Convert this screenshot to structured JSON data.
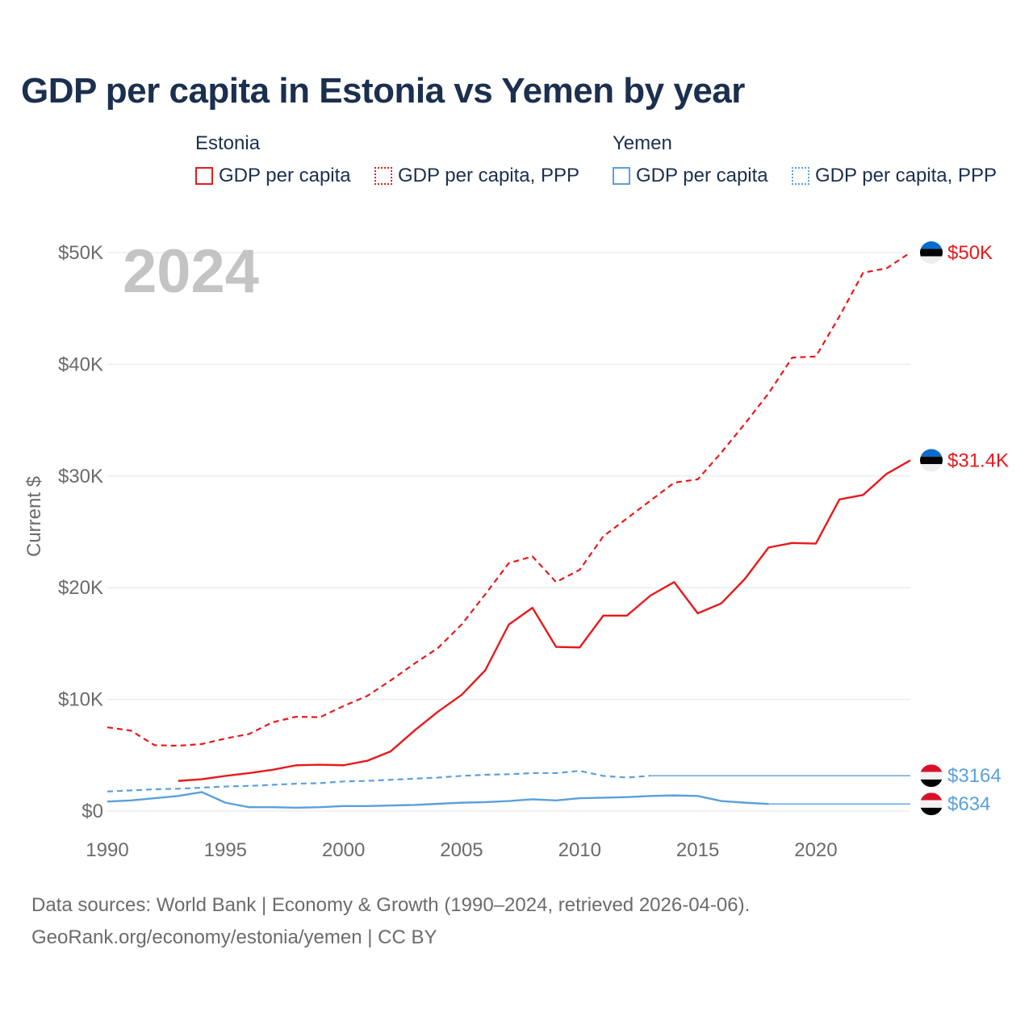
{
  "chart_data": {
    "type": "line",
    "title": "GDP per capita in Estonia vs Yemen by year",
    "ylabel": "Current $",
    "xlabel": "",
    "current_year": "2024",
    "xlim": [
      1990,
      2024
    ],
    "ylim": [
      0,
      50000
    ],
    "x_ticks": [
      1990,
      1995,
      2000,
      2005,
      2010,
      2015,
      2020
    ],
    "x_tick_labels": [
      "1990",
      "1995",
      "2000",
      "2005",
      "2010",
      "2015",
      "2020"
    ],
    "y_ticks": [
      0,
      10000,
      20000,
      30000,
      40000,
      50000
    ],
    "y_tick_labels": [
      "$0",
      "$10K",
      "$20K",
      "$30K",
      "$40K",
      "$50K"
    ],
    "legend": {
      "groups": [
        {
          "country": "Estonia",
          "entries": [
            "GDP per capita",
            "GDP per capita, PPP"
          ]
        },
        {
          "country": "Yemen",
          "entries": [
            "GDP per capita",
            "GDP per capita, PPP"
          ]
        }
      ]
    },
    "series": [
      {
        "name": "Estonia GDP per capita, PPP",
        "country": "Estonia",
        "color": "#e8191b",
        "style": "dashed",
        "end_label": "$50K",
        "points": [
          [
            1990,
            7500
          ],
          [
            1991,
            7200
          ],
          [
            1992,
            5900
          ],
          [
            1993,
            5850
          ],
          [
            1994,
            6000
          ],
          [
            1995,
            6500
          ],
          [
            1996,
            6900
          ],
          [
            1997,
            7950
          ],
          [
            1998,
            8450
          ],
          [
            1999,
            8400
          ],
          [
            2000,
            9400
          ],
          [
            2001,
            10300
          ],
          [
            2002,
            11700
          ],
          [
            2003,
            13200
          ],
          [
            2004,
            14600
          ],
          [
            2005,
            16700
          ],
          [
            2006,
            19400
          ],
          [
            2007,
            22200
          ],
          [
            2008,
            22800
          ],
          [
            2009,
            20500
          ],
          [
            2010,
            21600
          ],
          [
            2011,
            24600
          ],
          [
            2012,
            26200
          ],
          [
            2013,
            27800
          ],
          [
            2014,
            29400
          ],
          [
            2015,
            29700
          ],
          [
            2016,
            32100
          ],
          [
            2017,
            34700
          ],
          [
            2018,
            37400
          ],
          [
            2019,
            40600
          ],
          [
            2020,
            40700
          ],
          [
            2021,
            44300
          ],
          [
            2022,
            48200
          ],
          [
            2023,
            48600
          ],
          [
            2024,
            50000
          ]
        ]
      },
      {
        "name": "Estonia GDP per capita",
        "country": "Estonia",
        "color": "#e8191b",
        "style": "solid",
        "end_label": "$31.4K",
        "points": [
          [
            1993,
            2700
          ],
          [
            1994,
            2850
          ],
          [
            1995,
            3150
          ],
          [
            1996,
            3400
          ],
          [
            1997,
            3700
          ],
          [
            1998,
            4100
          ],
          [
            1999,
            4150
          ],
          [
            2000,
            4100
          ],
          [
            2001,
            4500
          ],
          [
            2002,
            5350
          ],
          [
            2003,
            7200
          ],
          [
            2004,
            8900
          ],
          [
            2005,
            10400
          ],
          [
            2006,
            12600
          ],
          [
            2007,
            16700
          ],
          [
            2008,
            18200
          ],
          [
            2009,
            14700
          ],
          [
            2010,
            14650
          ],
          [
            2011,
            17500
          ],
          [
            2012,
            17500
          ],
          [
            2013,
            19300
          ],
          [
            2014,
            20500
          ],
          [
            2015,
            17700
          ],
          [
            2016,
            18600
          ],
          [
            2017,
            20800
          ],
          [
            2018,
            23600
          ],
          [
            2019,
            24000
          ],
          [
            2020,
            23950
          ],
          [
            2021,
            27900
          ],
          [
            2022,
            28300
          ],
          [
            2023,
            30200
          ],
          [
            2024,
            31400
          ]
        ]
      },
      {
        "name": "Yemen GDP per capita, PPP",
        "country": "Yemen",
        "color": "#5aa0dc",
        "style": "dashed",
        "end_label": "$3164",
        "points": [
          [
            1990,
            1750
          ],
          [
            1991,
            1850
          ],
          [
            1992,
            1950
          ],
          [
            1993,
            2000
          ],
          [
            1994,
            2100
          ],
          [
            1995,
            2200
          ],
          [
            1996,
            2250
          ],
          [
            1997,
            2350
          ],
          [
            1998,
            2450
          ],
          [
            1999,
            2500
          ],
          [
            2000,
            2650
          ],
          [
            2001,
            2700
          ],
          [
            2002,
            2800
          ],
          [
            2003,
            2900
          ],
          [
            2004,
            3000
          ],
          [
            2005,
            3150
          ],
          [
            2006,
            3250
          ],
          [
            2007,
            3300
          ],
          [
            2008,
            3400
          ],
          [
            2009,
            3400
          ],
          [
            2010,
            3600
          ],
          [
            2011,
            3150
          ],
          [
            2012,
            3000
          ],
          [
            2013,
            3164
          ]
        ],
        "held_to": 2024
      },
      {
        "name": "Yemen GDP per capita",
        "country": "Yemen",
        "color": "#5aa0dc",
        "style": "solid",
        "end_label": "$634",
        "points": [
          [
            1990,
            850
          ],
          [
            1991,
            950
          ],
          [
            1992,
            1150
          ],
          [
            1993,
            1350
          ],
          [
            1994,
            1700
          ],
          [
            1995,
            750
          ],
          [
            1996,
            350
          ],
          [
            1997,
            350
          ],
          [
            1998,
            300
          ],
          [
            1999,
            350
          ],
          [
            2000,
            450
          ],
          [
            2001,
            450
          ],
          [
            2002,
            500
          ],
          [
            2003,
            550
          ],
          [
            2004,
            650
          ],
          [
            2005,
            750
          ],
          [
            2006,
            800
          ],
          [
            2007,
            900
          ],
          [
            2008,
            1050
          ],
          [
            2009,
            950
          ],
          [
            2010,
            1150
          ],
          [
            2011,
            1200
          ],
          [
            2012,
            1250
          ],
          [
            2013,
            1350
          ],
          [
            2014,
            1400
          ],
          [
            2015,
            1350
          ],
          [
            2016,
            900
          ],
          [
            2017,
            750
          ],
          [
            2018,
            634
          ]
        ],
        "held_to": 2024
      }
    ],
    "sources": "Data sources: World Bank | Economy & Growth (1990–2024, retrieved 2026-04-06).",
    "credit": "GeoRank.org/economy/estonia/yemen | CC BY"
  }
}
